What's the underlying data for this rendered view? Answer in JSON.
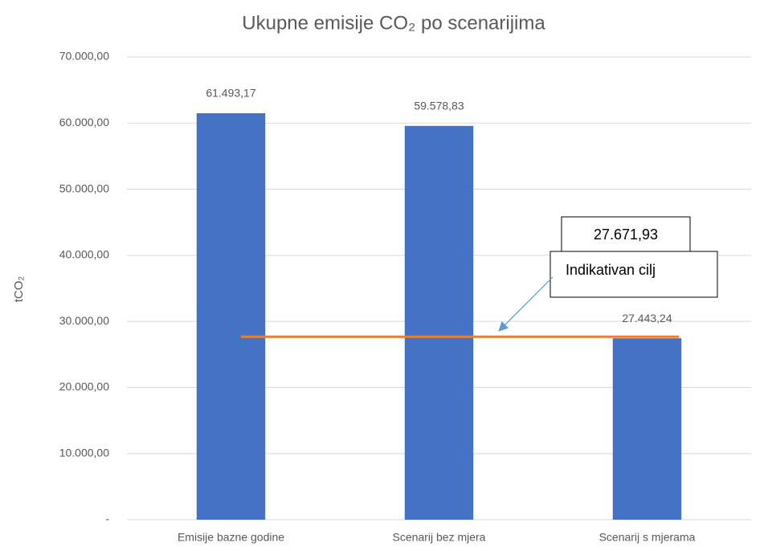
{
  "chart_data": {
    "type": "bar",
    "title": "Ukupne emisije CO₂ po scenarijima",
    "y_label": "tCO₂",
    "categories": [
      "Emisije bazne godine",
      "Scenarij bez mjera",
      "Scenarij s mjerama"
    ],
    "values": [
      61493.17,
      59578.83,
      27443.24
    ],
    "value_labels": [
      "61.493,17",
      "59.578,83",
      "27.443,24"
    ],
    "color": "#4472c4",
    "ylim": [
      0,
      70000
    ],
    "yticks": [
      {
        "value": 0,
        "label": "-"
      },
      {
        "value": 10000,
        "label": "10.000,00"
      },
      {
        "value": 20000,
        "label": "20.000,00"
      },
      {
        "value": 30000,
        "label": "30.000,00"
      },
      {
        "value": 40000,
        "label": "40.000,00"
      },
      {
        "value": 50000,
        "label": "50.000,00"
      },
      {
        "value": 60000,
        "label": "60.000,00"
      },
      {
        "value": 70000,
        "label": "70.000,00"
      }
    ],
    "grid": true,
    "target": {
      "value": 27671.93,
      "label": "27.671,93",
      "name": "Indikativan cilj",
      "color": "#ed7d31"
    }
  }
}
